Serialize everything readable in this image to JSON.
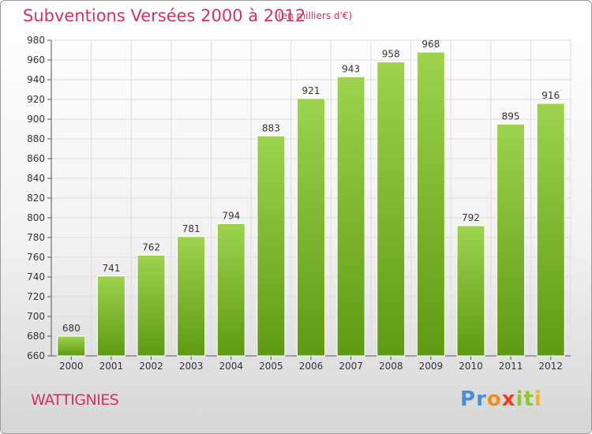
{
  "header": {
    "title": "Subventions Versées 2000 à 2012",
    "subtitle": "(en milliers d'€)"
  },
  "footer": {
    "commune": "WATTIGNIES",
    "brand": "Proxiti",
    "brand_letters": [
      {
        "ch": "P",
        "color": "#4a8fd6"
      },
      {
        "ch": "r",
        "color": "#4a8fd6"
      },
      {
        "ch": "o",
        "color": "#f28c1f"
      },
      {
        "ch": "x",
        "color": "#e8411f"
      },
      {
        "ch": "i",
        "color": "#8cc63f"
      },
      {
        "ch": "t",
        "color": "#8cc63f"
      },
      {
        "ch": "i",
        "color": "#f2b51f"
      }
    ]
  },
  "colors": {
    "accent": "#cc3366",
    "bar_top": "#9ed24f",
    "bar_bottom": "#5f9a12",
    "grid": "#dddddd"
  },
  "chart_data": {
    "type": "bar",
    "title": "Subventions Versées 2000 à 2012",
    "subtitle": "(en milliers d'€)",
    "categories": [
      "2000",
      "2001",
      "2002",
      "2003",
      "2004",
      "2005",
      "2006",
      "2007",
      "2008",
      "2009",
      "2010",
      "2011",
      "2012"
    ],
    "values": [
      680,
      741,
      762,
      781,
      794,
      883,
      921,
      943,
      958,
      968,
      792,
      895,
      916
    ],
    "ylim": [
      660,
      980
    ],
    "yticks": [
      660,
      680,
      700,
      720,
      740,
      760,
      780,
      800,
      820,
      840,
      860,
      880,
      900,
      920,
      940,
      960,
      980
    ],
    "grid": true,
    "data_labels": true,
    "xlabel": "",
    "ylabel": ""
  }
}
